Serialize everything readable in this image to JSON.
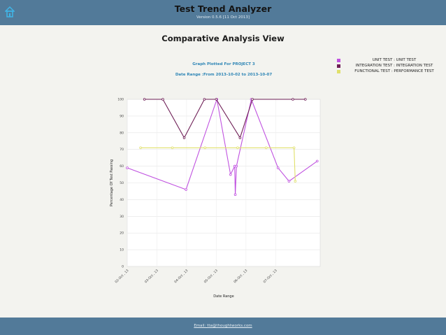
{
  "header": {
    "title": "Test Trend Analyzer",
    "version": "Version 0.5.6 [11 Oct 2013]"
  },
  "view": {
    "title": "Comparative Analysis View",
    "graph_subtitle": "Graph Plotted For PROJECT 3",
    "date_range": "Date Range :From 2013-10-02 to 2013-10-07"
  },
  "legend": [
    {
      "label": "UNIT TEST : UNIT TEST",
      "color": "#c052e0"
    },
    {
      "label": "INTEGRATION TEST : INTEGRATION TEST",
      "color": "#6e1e56"
    },
    {
      "label": "FUNCTIONAL TEST : PERFORMANCE TEST",
      "color": "#e0e06a"
    }
  ],
  "footer": {
    "email": "Email: tta@thoughtworks.com"
  },
  "chart_data": {
    "type": "line",
    "title": "",
    "xlabel": "Date Range",
    "ylabel": "Percentage Of Test Passing",
    "ylim": [
      0,
      100
    ],
    "yticks": [
      0,
      10,
      20,
      30,
      40,
      50,
      60,
      70,
      80,
      90,
      100
    ],
    "xlim": [
      0,
      6.5
    ],
    "xticks": [
      {
        "x": 0,
        "label": "02-Oct , 13"
      },
      {
        "x": 1,
        "label": "03-Oct , 13"
      },
      {
        "x": 2,
        "label": "04-Oct , 13"
      },
      {
        "x": 3,
        "label": "05-Oct , 13"
      },
      {
        "x": 4,
        "label": "06-Oct , 13"
      },
      {
        "x": 5,
        "label": "07-Oct , 13"
      }
    ],
    "grid": true,
    "legend_position": "top-right",
    "series": [
      {
        "name": "UNIT TEST : UNIT TEST",
        "color": "#c052e0",
        "points": [
          [
            0,
            59
          ],
          [
            1.98,
            46
          ],
          [
            3.02,
            100
          ],
          [
            3.48,
            55
          ],
          [
            3.62,
            60
          ],
          [
            3.64,
            43
          ],
          [
            3.68,
            60
          ],
          [
            4.18,
            100
          ],
          [
            5.08,
            59
          ],
          [
            5.45,
            51
          ],
          [
            6.4,
            63
          ]
        ]
      },
      {
        "name": "INTEGRATION TEST : INTEGRATION TEST",
        "color": "#6e1e56",
        "points": [
          [
            0.58,
            100
          ],
          [
            1.2,
            100
          ],
          [
            1.92,
            77
          ],
          [
            2.6,
            100
          ],
          [
            3.0,
            100
          ],
          [
            3.8,
            77
          ],
          [
            4.22,
            100
          ],
          [
            5.58,
            100
          ],
          [
            6.0,
            100
          ]
        ]
      },
      {
        "name": "FUNCTIONAL TEST : PERFORMANCE TEST",
        "color": "#e0e06a",
        "points": [
          [
            0.45,
            71
          ],
          [
            1.52,
            71
          ],
          [
            2.62,
            71
          ],
          [
            3.72,
            71
          ],
          [
            4.68,
            71
          ],
          [
            5.62,
            71
          ],
          [
            5.66,
            51
          ]
        ]
      }
    ]
  }
}
